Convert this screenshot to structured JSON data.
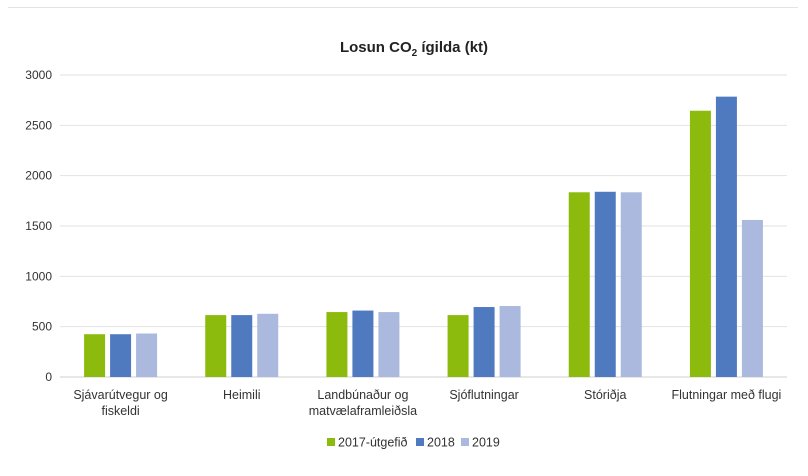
{
  "chart_data": {
    "type": "bar",
    "title": "Losun CO",
    "title_subscript": "2",
    "title_suffix": " ígilda (kt)",
    "categories": [
      [
        "Sjávarútvegur og",
        "fiskeldi"
      ],
      [
        "Heimili"
      ],
      [
        "Landbúnaður og",
        "matvælaframleiðsla"
      ],
      [
        "Sjóflutningar"
      ],
      [
        "Stóriðja"
      ],
      [
        "Flutningar með flugi"
      ]
    ],
    "series": [
      {
        "name": "2017-útgefið",
        "color": "#8cbb0e",
        "values": [
          425,
          615,
          645,
          615,
          1835,
          2645
        ]
      },
      {
        "name": "2018",
        "color": "#4f7ac0",
        "values": [
          425,
          615,
          660,
          695,
          1840,
          2785
        ]
      },
      {
        "name": "2019",
        "color": "#aab9dd",
        "values": [
          432,
          628,
          645,
          705,
          1835,
          1560
        ]
      }
    ],
    "y_ticks": [
      "0",
      "500",
      "1000",
      "1500",
      "2000",
      "2500",
      "3000"
    ],
    "ylim": [
      0,
      3000
    ],
    "grid": true,
    "legend_position": "bottom"
  }
}
